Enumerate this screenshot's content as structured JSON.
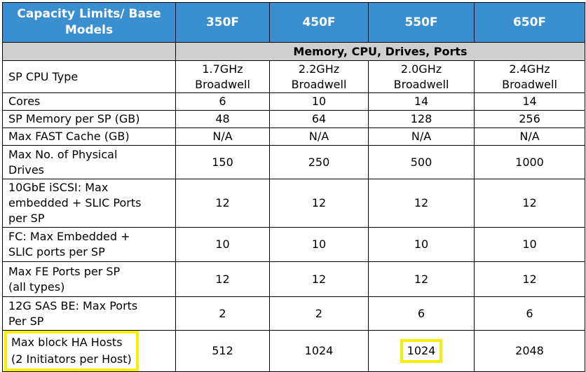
{
  "table": {
    "header": [
      "Capacity Limits/ Base Models",
      "350F",
      "450F",
      "550F",
      "650F"
    ],
    "section": "Memory, CPU, Drives, Ports",
    "rows": [
      {
        "label": [
          "SP CPU Type"
        ],
        "values": [
          [
            "1.7GHz",
            "Broadwell"
          ],
          [
            "2.2GHz",
            "Broadwell"
          ],
          [
            "2.0GHz",
            "Broadwell"
          ],
          [
            "2.4GHz",
            "Broadwell"
          ]
        ]
      },
      {
        "label": [
          "Cores"
        ],
        "values": [
          [
            "6"
          ],
          [
            "10"
          ],
          [
            "14"
          ],
          [
            "14"
          ]
        ]
      },
      {
        "label": [
          "SP Memory per SP  (GB)"
        ],
        "values": [
          [
            "48"
          ],
          [
            "64"
          ],
          [
            "128"
          ],
          [
            "256"
          ]
        ]
      },
      {
        "label": [
          "Max FAST Cache (GB)"
        ],
        "values": [
          [
            "N/A"
          ],
          [
            "N/A"
          ],
          [
            "N/A"
          ],
          [
            "N/A"
          ]
        ]
      },
      {
        "label": [
          "Max No. of Physical",
          "Drives"
        ],
        "values": [
          [
            "150"
          ],
          [
            "250"
          ],
          [
            "500"
          ],
          [
            "1000"
          ]
        ]
      },
      {
        "label": [
          "10GbE iSCSI: Max",
          "embedded + SLIC Ports",
          "per SP"
        ],
        "values": [
          [
            "12"
          ],
          [
            "12"
          ],
          [
            "12"
          ],
          [
            "12"
          ]
        ]
      },
      {
        "label": [
          "FC: Max Embedded +",
          "SLIC ports per SP"
        ],
        "values": [
          [
            "10"
          ],
          [
            "10"
          ],
          [
            "10"
          ],
          [
            "10"
          ]
        ]
      },
      {
        "label": [
          "Max FE Ports per SP",
          "(all types)"
        ],
        "values": [
          [
            "12"
          ],
          [
            "12"
          ],
          [
            "12"
          ],
          [
            "12"
          ]
        ]
      },
      {
        "label": [
          "12G SAS BE: Max Ports",
          "Per SP"
        ],
        "values": [
          [
            "2"
          ],
          [
            "2"
          ],
          [
            "6"
          ],
          [
            "6"
          ]
        ]
      },
      {
        "label": [
          "Max block HA Hosts",
          "(2 Initiators per Host)"
        ],
        "values": [
          [
            "512"
          ],
          [
            "1024"
          ],
          [
            "1024"
          ],
          [
            "2048"
          ]
        ]
      }
    ],
    "colors": {
      "header_bg": "#3a8fd0",
      "section_bg": "#d0cfcf",
      "highlight": "#f7ee00"
    }
  }
}
